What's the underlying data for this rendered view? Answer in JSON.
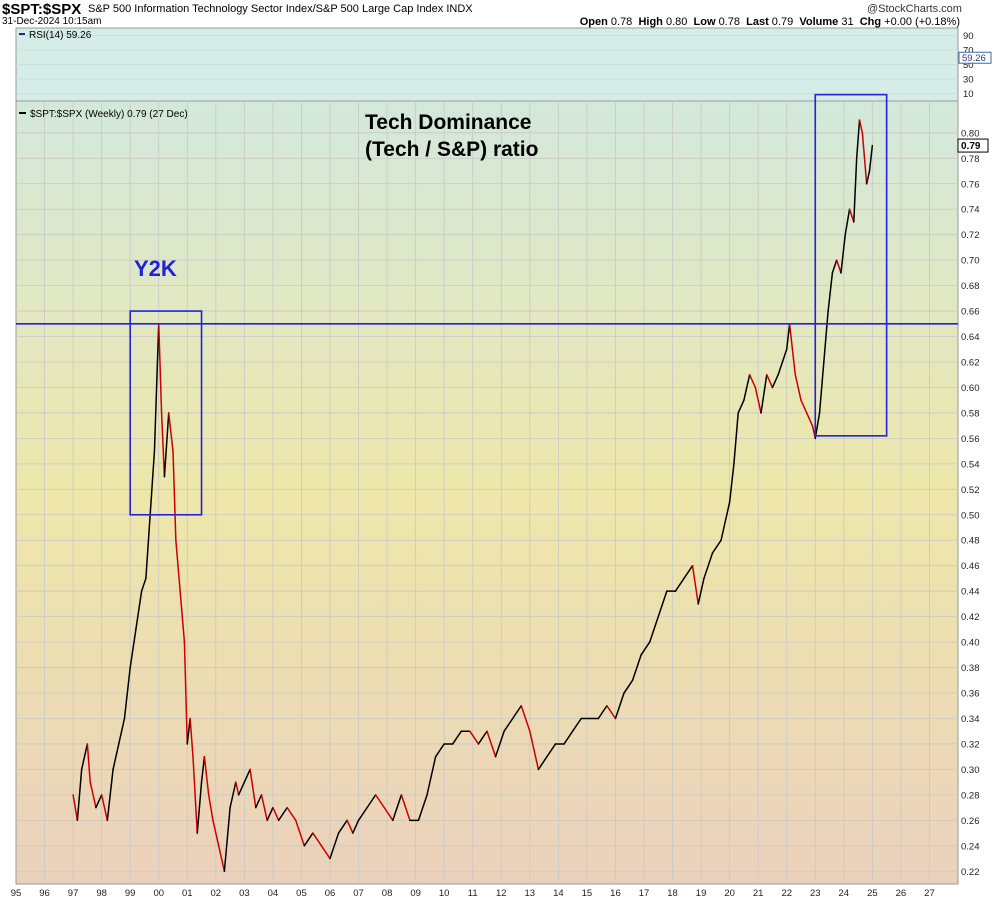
{
  "header": {
    "symbol": "$SPT:$SPX",
    "description": "S&P 500 Information Technology Sector Index/S&P 500 Large Cap Index  INDX",
    "datetime": "31-Dec-2024 10:15am",
    "watermark": "@StockCharts.com",
    "open_label": "Open",
    "open": "0.78",
    "high_label": "High",
    "high": "0.80",
    "low_label": "Low",
    "low": "0.78",
    "last_label": "Last",
    "last": "0.79",
    "volume_label": "Volume",
    "volume": "31",
    "chg_label": "Chg",
    "chg": "+0.00 (+0.18%)"
  },
  "rsi_panel": {
    "legend": "RSI(14) 59.26",
    "ticks": [
      "90",
      "70",
      "50",
      "30",
      "10"
    ],
    "tick_values": [
      90,
      70,
      50,
      30,
      10
    ],
    "current_label": "59.26",
    "current_value": 59.26
  },
  "price_panel": {
    "legend": "$SPT:$SPX (Weekly) 0.79 (27 Dec)",
    "current_label": "0.79"
  },
  "annotations": {
    "title_line1": "Tech Dominance",
    "title_line2": "(Tech / S&P) ratio",
    "y2k_label": "Y2K"
  },
  "colors": {
    "rising": "#000000",
    "falling": "#cc0000",
    "annotation": "#2222dd",
    "grid": "#c8c8c8",
    "bg_top": "#d3e8dc",
    "bg_mid": "#eee7aa",
    "bg_bottom": "#ebd1bc",
    "rsi_bg": "#d6ece6"
  },
  "chart_data": {
    "type": "line",
    "title": "Tech Dominance (Tech / S&P) ratio",
    "x_axis": {
      "ticks": [
        "95",
        "96",
        "97",
        "98",
        "99",
        "00",
        "01",
        "02",
        "03",
        "04",
        "05",
        "06",
        "07",
        "08",
        "09",
        "10",
        "11",
        "12",
        "13",
        "14",
        "15",
        "16",
        "17",
        "18",
        "19",
        "20",
        "21",
        "22",
        "23",
        "24",
        "25",
        "26",
        "27"
      ],
      "range": [
        1995.0,
        2028.0
      ]
    },
    "y_axis": {
      "ticks": [
        "0.80",
        "0.78",
        "0.76",
        "0.74",
        "0.72",
        "0.70",
        "0.68",
        "0.66",
        "0.64",
        "0.62",
        "0.60",
        "0.58",
        "0.56",
        "0.54",
        "0.52",
        "0.50",
        "0.48",
        "0.46",
        "0.44",
        "0.42",
        "0.40",
        "0.38",
        "0.36",
        "0.34",
        "0.32",
        "0.30",
        "0.28",
        "0.26",
        "0.24",
        "0.22"
      ],
      "range": [
        0.21,
        0.825
      ],
      "side": "right"
    },
    "grid": true,
    "series": [
      {
        "x": [
          1997.0,
          1997.15,
          1997.3,
          1997.5,
          1997.6,
          1997.8,
          1998.0,
          1998.2,
          1998.4,
          1998.6,
          1998.8,
          1999.0,
          1999.2,
          1999.4,
          1999.55,
          1999.7,
          1999.85,
          2000.0,
          2000.1,
          2000.2,
          2000.35,
          2000.5,
          2000.6,
          2000.75,
          2000.9,
          2001.0,
          2001.1,
          2001.2,
          2001.35,
          2001.5,
          2001.6,
          2001.75,
          2001.9,
          2002.1,
          2002.3,
          2002.5,
          2002.7,
          2002.8,
          2003.0,
          2003.2,
          2003.4,
          2003.6,
          2003.8,
          2004.0,
          2004.2,
          2004.5,
          2004.8,
          2005.1,
          2005.4,
          2005.7,
          2006.0,
          2006.3,
          2006.6,
          2006.8,
          2007.0,
          2007.3,
          2007.6,
          2007.9,
          2008.2,
          2008.5,
          2008.8,
          2009.1,
          2009.4,
          2009.7,
          2010.0,
          2010.3,
          2010.6,
          2010.9,
          2011.2,
          2011.5,
          2011.8,
          2012.1,
          2012.4,
          2012.7,
          2013.0,
          2013.3,
          2013.6,
          2013.9,
          2014.2,
          2014.5,
          2014.8,
          2015.1,
          2015.4,
          2015.7,
          2016.0,
          2016.3,
          2016.6,
          2016.9,
          2017.2,
          2017.5,
          2017.8,
          2018.1,
          2018.4,
          2018.7,
          2018.9,
          2019.1,
          2019.4,
          2019.7,
          2020.0,
          2020.15,
          2020.3,
          2020.5,
          2020.7,
          2020.9,
          2021.1,
          2021.3,
          2021.5,
          2021.7,
          2021.85,
          2022.0,
          2022.1,
          2022.3,
          2022.5,
          2022.7,
          2022.9,
          2023.0,
          2023.15,
          2023.3,
          2023.45,
          2023.6,
          2023.75,
          2023.9,
          2024.05,
          2024.2,
          2024.35,
          2024.45,
          2024.55,
          2024.65,
          2024.8,
          2024.9,
          2025.0
        ],
        "y": [
          0.28,
          0.26,
          0.3,
          0.32,
          0.29,
          0.27,
          0.28,
          0.26,
          0.3,
          0.32,
          0.34,
          0.38,
          0.41,
          0.44,
          0.45,
          0.5,
          0.55,
          0.65,
          0.58,
          0.53,
          0.58,
          0.55,
          0.48,
          0.44,
          0.4,
          0.32,
          0.34,
          0.31,
          0.25,
          0.29,
          0.31,
          0.28,
          0.26,
          0.24,
          0.22,
          0.27,
          0.29,
          0.28,
          0.29,
          0.3,
          0.27,
          0.28,
          0.26,
          0.27,
          0.26,
          0.27,
          0.26,
          0.24,
          0.25,
          0.24,
          0.23,
          0.25,
          0.26,
          0.25,
          0.26,
          0.27,
          0.28,
          0.27,
          0.26,
          0.28,
          0.26,
          0.26,
          0.28,
          0.31,
          0.32,
          0.32,
          0.33,
          0.33,
          0.32,
          0.33,
          0.31,
          0.33,
          0.34,
          0.35,
          0.33,
          0.3,
          0.31,
          0.32,
          0.32,
          0.33,
          0.34,
          0.34,
          0.34,
          0.35,
          0.34,
          0.36,
          0.37,
          0.39,
          0.4,
          0.42,
          0.44,
          0.44,
          0.45,
          0.46,
          0.43,
          0.45,
          0.47,
          0.48,
          0.51,
          0.54,
          0.58,
          0.59,
          0.61,
          0.6,
          0.58,
          0.61,
          0.6,
          0.61,
          0.62,
          0.63,
          0.65,
          0.61,
          0.59,
          0.58,
          0.57,
          0.56,
          0.58,
          0.62,
          0.66,
          0.69,
          0.7,
          0.69,
          0.72,
          0.74,
          0.73,
          0.78,
          0.81,
          0.8,
          0.76,
          0.77,
          0.79
        ]
      }
    ],
    "annotations": [
      {
        "label": "Y2K",
        "type": "box",
        "x_range": [
          1999.0,
          2001.5
        ],
        "y_range": [
          0.5,
          0.66
        ]
      },
      {
        "label": "",
        "type": "box",
        "x_range": [
          2023.0,
          2025.5
        ],
        "y_range": [
          0.562,
          0.83
        ]
      },
      {
        "label": "",
        "type": "hline",
        "y": 0.65
      }
    ]
  }
}
